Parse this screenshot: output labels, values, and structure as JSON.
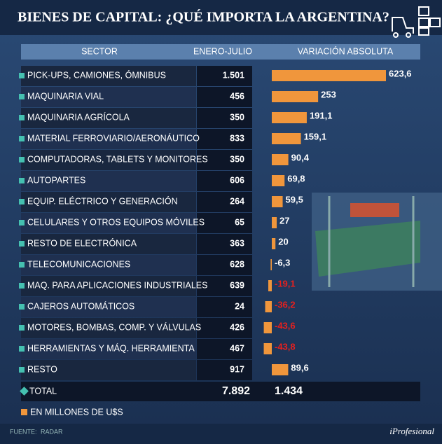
{
  "title": "BIENES DE CAPITAL: ¿QUÉ IMPORTA LA ARGENTINA?",
  "chart_data": {
    "type": "bar",
    "orientation": "horizontal",
    "columns": [
      "SECTOR",
      "ENERO-JULIO",
      "VARIACIÓN ABSOLUTA"
    ],
    "categories": [
      "PICK-UPS, CAMIONES, ÓMNIBUS",
      "MAQUINARIA VIAL",
      "MAQUINARIA AGRÍCOLA",
      "MATERIAL FERROVIARIO/AERONÁUTICO",
      "COMPUTADORAS, TABLETS Y MONITORES",
      "AUTOPARTES",
      "EQUIP. ELÉCTRICO Y GENERACIÓN",
      "CELULARES Y OTROS EQUIPOS MÓVILES",
      "RESTO DE ELECTRÓNICA",
      "TELECOMUNICACIONES",
      "MAQ. PARA APLICACIONES INDUSTRIALES",
      "CAJEROS AUTOMÁTICOS",
      "MOTORES, BOMBAS, COMP. Y VÁLVULAS",
      "HERRAMIENTAS Y MÁQ. HERRAMIENTA",
      "RESTO"
    ],
    "enero_julio": [
      "1.501",
      "456",
      "350",
      "833",
      "350",
      "606",
      "264",
      "65",
      "363",
      "628",
      "639",
      "24",
      "426",
      "467",
      "917"
    ],
    "values": [
      623.6,
      253,
      191.1,
      159.1,
      90.4,
      69.8,
      59.5,
      27,
      20,
      -6.3,
      -19.1,
      -36.2,
      -43.6,
      -43.8,
      89.6
    ],
    "value_labels": [
      "623,6",
      "253",
      "191,1",
      "159,1",
      "90,4",
      "69,8",
      "59,5",
      "27",
      "20",
      "-6,3",
      "-19,1",
      "-36,2",
      "-43,6",
      "-43,8",
      "89,6"
    ],
    "label_colors": [
      "#ffffff",
      "#ffffff",
      "#ffffff",
      "#ffffff",
      "#ffffff",
      "#ffffff",
      "#ffffff",
      "#ffffff",
      "#ffffff",
      "#ffffff",
      "#e8201e",
      "#e8201e",
      "#e8201e",
      "#e8201e",
      "#ffffff"
    ],
    "color": "#f0963c",
    "total": {
      "label": "TOTAL",
      "enero_julio": "7.892",
      "variacion": "1.434"
    },
    "note": "EN MILLONES DE U$S"
  },
  "footer": {
    "source_label": "FUENTE:",
    "source": "RADAR",
    "brand": "iProfesional"
  }
}
